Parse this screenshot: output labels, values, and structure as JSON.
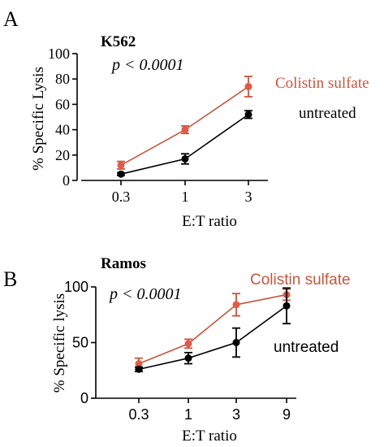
{
  "colors": {
    "colistin": "#c8553d",
    "colistin_point": "#e05a4a",
    "untreated": "#000000"
  },
  "chart_data": [
    {
      "type": "line",
      "panel_label": "A",
      "title": "K562",
      "annotation": "p < 0.0001",
      "xlabel": "E:T ratio",
      "ylabel": "% Specific Lysis",
      "categories": [
        "0.3",
        "1",
        "3"
      ],
      "ylim": [
        0,
        100
      ],
      "yticks": [
        "0",
        "20",
        "40",
        "60",
        "80",
        "100"
      ],
      "series": [
        {
          "name": "Colistin sulfate",
          "values": [
            12,
            40,
            74
          ],
          "err": [
            3,
            3,
            8
          ]
        },
        {
          "name": "untreated",
          "values": [
            5,
            17,
            52
          ],
          "err": [
            1,
            4,
            3
          ]
        }
      ]
    },
    {
      "type": "line",
      "panel_label": "B",
      "title": "Ramos",
      "annotation": "p < 0.0001",
      "xlabel": "E:T ratio",
      "ylabel": "% Specific lysis",
      "categories": [
        "0.3",
        "1",
        "3",
        "9"
      ],
      "ylim": [
        0,
        100
      ],
      "yticks": [
        "0",
        "50",
        "100"
      ],
      "series": [
        {
          "name": "Colistin sulfate",
          "values": [
            31,
            49,
            84,
            93
          ],
          "err": [
            5,
            4,
            10,
            5
          ]
        },
        {
          "name": "untreated",
          "values": [
            26,
            36,
            50,
            83
          ],
          "err": [
            2,
            5,
            13,
            16
          ]
        }
      ]
    }
  ]
}
